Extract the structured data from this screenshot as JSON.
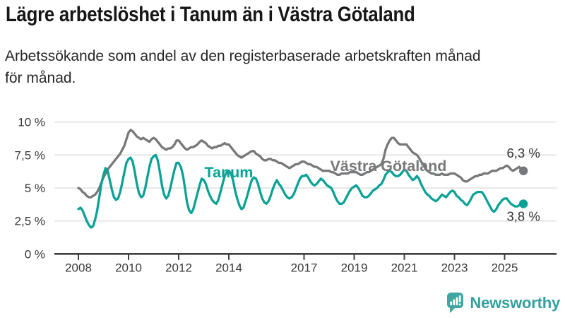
{
  "title": "Lägre arbetslöshet i Tanum än i Västra Götaland",
  "subtitle": "Arbetssökande som andel av den registerbaserade arbetskraften månad\nför månad.",
  "branding": {
    "logo_text": "Newsworthy",
    "logo_color": "#3fa6a1",
    "wordmark_color": "#35a09d"
  },
  "colors": {
    "tanum_line": "#0ba295",
    "vastra_gotaland_line": "#77787a",
    "gridline": "#e0e0e0",
    "axis": "#404040",
    "axis_label": "#3a3a3a",
    "end_label_text": "#333333",
    "title_text": "#161616",
    "subtitle_text": "#262626"
  },
  "chart_data": {
    "type": "line",
    "frequency": "monthly",
    "x_start_year": 2008,
    "x_start_month": 1,
    "x_end_year": 2025,
    "x_end_month": 10,
    "grid": true,
    "ylim": [
      0,
      10
    ],
    "y_ticks": [
      {
        "value": 0,
        "label": "0 %"
      },
      {
        "value": 2.5,
        "label": "2,5 %"
      },
      {
        "value": 5,
        "label": "5 %"
      },
      {
        "value": 7.5,
        "label": "7,5 %"
      },
      {
        "value": 10,
        "label": "10 %"
      }
    ],
    "x_ticks": [
      {
        "year": 2008,
        "label": "2008"
      },
      {
        "year": 2010,
        "label": "2010"
      },
      {
        "year": 2012,
        "label": "2012"
      },
      {
        "year": 2014,
        "label": "2014"
      },
      {
        "year": 2017,
        "label": "2017"
      },
      {
        "year": 2019,
        "label": "2019"
      },
      {
        "year": 2021,
        "label": "2021"
      },
      {
        "year": 2023,
        "label": "2023"
      },
      {
        "year": 2025,
        "label": "2025"
      }
    ],
    "series": [
      {
        "name": "Västra Götaland",
        "color": "#77787a",
        "end_value": 6.3,
        "end_label": "6,3 %",
        "values": [
          5.0,
          4.9,
          4.7,
          4.6,
          4.4,
          4.3,
          4.3,
          4.4,
          4.5,
          4.7,
          5.0,
          5.4,
          5.8,
          6.1,
          6.4,
          6.6,
          6.8,
          7.0,
          7.2,
          7.4,
          7.6,
          7.9,
          8.2,
          8.7,
          9.2,
          9.4,
          9.3,
          9.1,
          8.9,
          8.8,
          8.7,
          8.8,
          8.7,
          8.6,
          8.5,
          8.7,
          8.8,
          8.7,
          8.5,
          8.3,
          8.1,
          8.0,
          7.9,
          8.0,
          8.0,
          8.1,
          8.3,
          8.6,
          8.6,
          8.4,
          8.2,
          8.0,
          7.9,
          8.0,
          8.1,
          8.1,
          8.2,
          8.3,
          8.5,
          8.6,
          8.5,
          8.4,
          8.2,
          8.1,
          8.0,
          8.1,
          8.1,
          8.2,
          8.2,
          8.3,
          8.4,
          8.3,
          8.3,
          8.1,
          7.9,
          7.7,
          7.5,
          7.4,
          7.3,
          7.4,
          7.5,
          7.6,
          7.7,
          7.8,
          7.8,
          7.6,
          7.5,
          7.4,
          7.2,
          7.1,
          7.1,
          7.2,
          7.2,
          7.1,
          7.1,
          7.0,
          6.9,
          6.9,
          6.8,
          6.7,
          6.6,
          6.5,
          6.6,
          6.7,
          6.8,
          6.8,
          6.9,
          7.0,
          7.0,
          6.9,
          6.8,
          6.8,
          6.7,
          6.6,
          6.6,
          6.5,
          6.4,
          6.3,
          6.3,
          6.3,
          6.3,
          6.2,
          6.2,
          6.1,
          6.0,
          6.0,
          6.1,
          6.1,
          6.1,
          6.1,
          6.2,
          6.2,
          6.2,
          6.2,
          6.1,
          6.0,
          6.0,
          6.1,
          6.2,
          6.2,
          6.3,
          6.4,
          6.5,
          6.6,
          6.7,
          6.8,
          7.2,
          7.9,
          8.3,
          8.6,
          8.8,
          8.8,
          8.6,
          8.4,
          8.3,
          8.3,
          8.3,
          8.3,
          8.1,
          7.9,
          7.7,
          7.6,
          7.5,
          7.3,
          7.0,
          6.8,
          6.5,
          6.3,
          6.2,
          6.1,
          6.1,
          6.0,
          6.0,
          6.0,
          6.1,
          6.0,
          6.0,
          6.0,
          6.1,
          6.1,
          6.1,
          6.0,
          5.9,
          5.8,
          5.6,
          5.5,
          5.5,
          5.6,
          5.7,
          5.8,
          5.9,
          5.9,
          6.0,
          6.0,
          6.1,
          6.1,
          6.1,
          6.2,
          6.3,
          6.3,
          6.3,
          6.4,
          6.5,
          6.5,
          6.6,
          6.7,
          6.6,
          6.4,
          6.3,
          6.4,
          6.5,
          6.6,
          6.4,
          6.3
        ]
      },
      {
        "name": "Tanum",
        "color": "#0ba295",
        "end_value": 3.8,
        "end_label": "3,8 %",
        "values": [
          3.4,
          3.5,
          3.3,
          2.9,
          2.5,
          2.2,
          2.0,
          2.1,
          2.6,
          3.3,
          4.3,
          5.3,
          6.0,
          6.5,
          6.3,
          5.6,
          4.9,
          4.3,
          4.1,
          4.2,
          4.7,
          5.4,
          6.2,
          6.9,
          7.2,
          7.3,
          7.0,
          6.2,
          5.3,
          4.6,
          4.3,
          4.4,
          5.0,
          5.8,
          6.6,
          7.2,
          7.4,
          7.5,
          7.1,
          6.2,
          5.2,
          4.5,
          4.2,
          4.4,
          5.0,
          5.7,
          6.4,
          6.9,
          6.9,
          6.6,
          6.0,
          5.0,
          3.9,
          3.3,
          3.1,
          3.4,
          4.0,
          4.6,
          5.2,
          5.7,
          5.6,
          5.3,
          4.8,
          4.4,
          4.1,
          3.9,
          3.8,
          4.1,
          4.7,
          5.3,
          5.9,
          6.2,
          6.3,
          6.1,
          5.6,
          4.8,
          4.2,
          3.7,
          3.4,
          3.5,
          4.0,
          4.5,
          5.1,
          5.6,
          5.8,
          5.7,
          5.3,
          4.7,
          4.2,
          3.9,
          3.8,
          4.0,
          4.4,
          4.9,
          5.3,
          5.6,
          5.3,
          5.1,
          4.8,
          4.5,
          4.3,
          4.2,
          4.3,
          4.5,
          4.9,
          5.3,
          5.7,
          5.9,
          5.9,
          6.0,
          5.8,
          5.5,
          5.3,
          5.2,
          5.3,
          5.5,
          5.7,
          5.6,
          5.4,
          5.2,
          5.1,
          5.0,
          4.7,
          4.3,
          4.0,
          3.8,
          3.8,
          3.9,
          4.2,
          4.5,
          4.8,
          5.0,
          5.1,
          5.2,
          5.0,
          4.7,
          4.4,
          4.3,
          4.3,
          4.4,
          4.6,
          4.8,
          4.9,
          5.0,
          5.2,
          5.3,
          5.6,
          6.0,
          6.2,
          6.3,
          6.2,
          6.0,
          5.9,
          5.9,
          6.0,
          6.2,
          6.4,
          6.3,
          6.0,
          5.8,
          5.6,
          5.7,
          5.9,
          5.7,
          5.3,
          5.0,
          4.7,
          4.5,
          4.4,
          4.2,
          4.1,
          4.0,
          4.1,
          4.3,
          4.5,
          4.4,
          4.3,
          4.5,
          4.7,
          4.8,
          4.7,
          4.4,
          4.3,
          4.1,
          4.0,
          3.8,
          3.7,
          3.9,
          4.2,
          4.5,
          4.6,
          4.7,
          4.7,
          4.7,
          4.5,
          4.2,
          3.9,
          3.6,
          3.3,
          3.2,
          3.4,
          3.7,
          3.9,
          4.1,
          4.2,
          4.2,
          4.0,
          3.8,
          3.7,
          3.6,
          3.6,
          3.7,
          3.7,
          3.8
        ]
      }
    ],
    "series_annotations": [
      {
        "series": "Västra Götaland",
        "x": 550,
        "y": 242
      },
      {
        "series": "Tanum",
        "x": 324,
        "y": 251
      }
    ]
  }
}
